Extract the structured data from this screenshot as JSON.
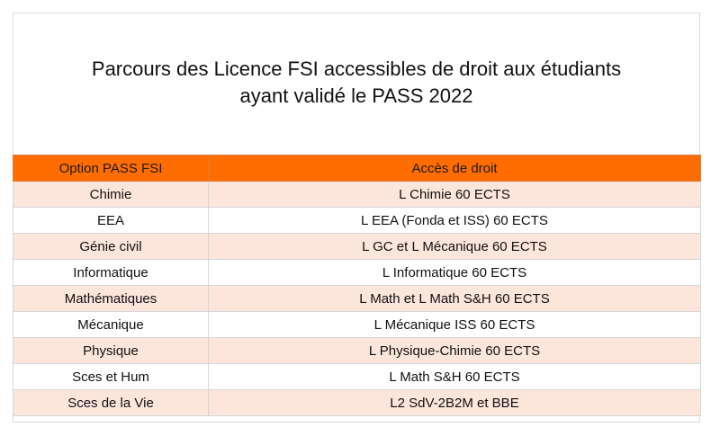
{
  "title": {
    "line1": "Parcours des Licence FSI accessibles de droit aux étudiants",
    "line2": "ayant validé le PASS 2022"
  },
  "table": {
    "headers": [
      "Option PASS FSI",
      "Accès de droit"
    ],
    "rows": [
      [
        "Chimie",
        "L Chimie 60 ECTS"
      ],
      [
        "EEA",
        "L EEA (Fonda et ISS) 60 ECTS"
      ],
      [
        "Génie civil",
        "L GC et L Mécanique 60 ECTS"
      ],
      [
        "Informatique",
        "L Informatique 60 ECTS"
      ],
      [
        "Mathématiques",
        "L Math et L Math S&H 60 ECTS"
      ],
      [
        "Mécanique",
        "L Mécanique ISS 60 ECTS"
      ],
      [
        "Physique",
        "L Physique-Chimie 60 ECTS"
      ],
      [
        "Sces et Hum",
        "L Math S&H 60 ECTS"
      ],
      [
        "Sces de la Vie",
        "L2 SdV-2B2M et BBE"
      ]
    ]
  },
  "colors": {
    "header_bg": "#ff6d00",
    "row_alt_bg": "#fce5db",
    "row_bg": "#ffffff"
  }
}
